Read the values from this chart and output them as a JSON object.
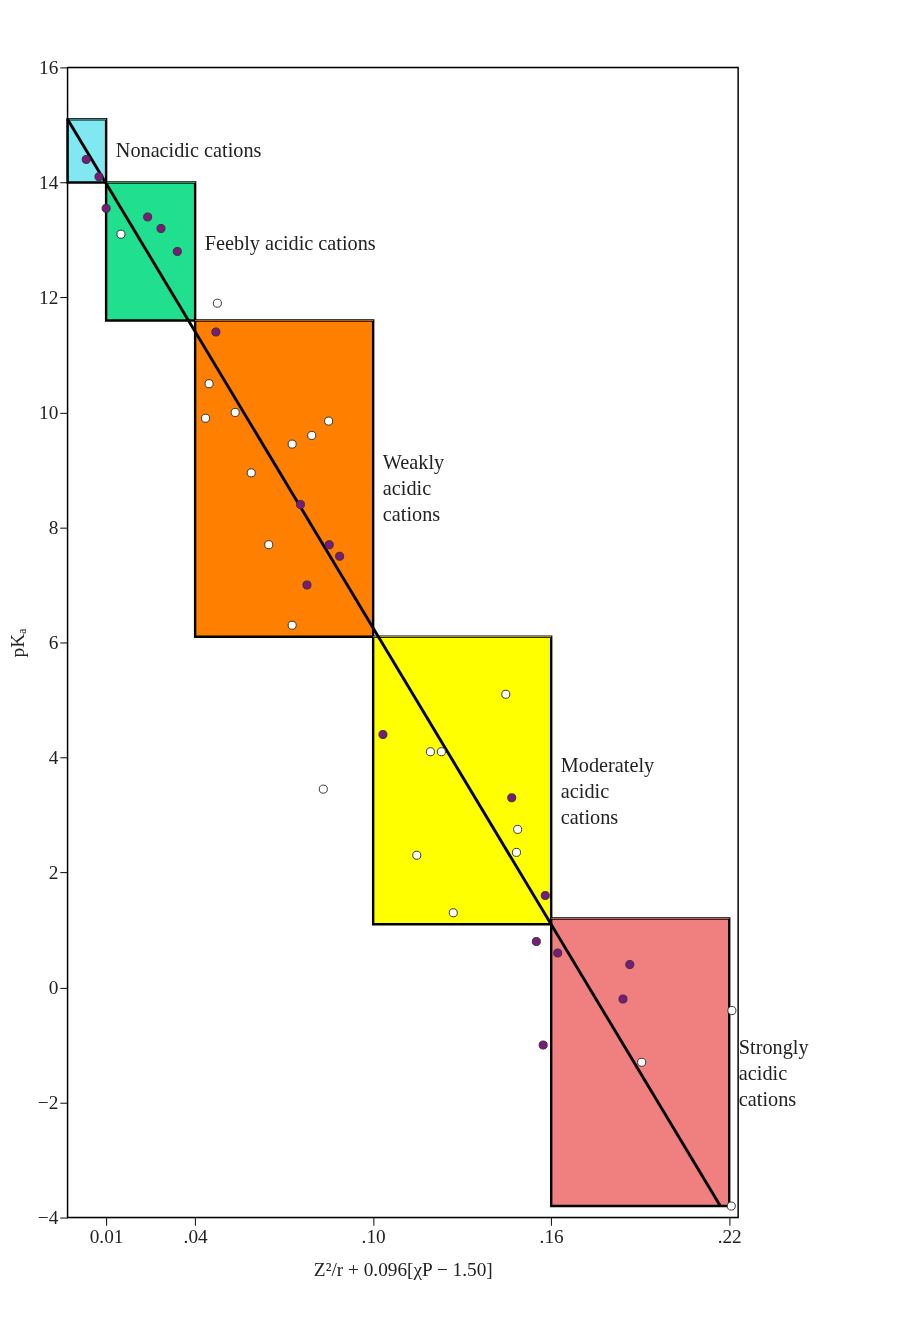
{
  "chart_data": {
    "type": "scatter",
    "xlabel": "Z²/r + 0.096[χP − 1.50]",
    "ylabel": "pKₐ",
    "xlim": [
      -0.003,
      0.223
    ],
    "ylim": [
      -4,
      16
    ],
    "xticks": [
      {
        "value": 0.01,
        "label": "0.01"
      },
      {
        "value": 0.04,
        "label": ".04"
      },
      {
        "value": 0.1,
        "label": ".10"
      },
      {
        "value": 0.16,
        "label": ".16"
      },
      {
        "value": 0.22,
        "label": ".22"
      }
    ],
    "yticks": [
      -4,
      -2,
      0,
      2,
      4,
      6,
      8,
      10,
      12,
      14,
      16
    ],
    "grid": false,
    "series": [
      {
        "type": "line",
        "color": "#80e8f0",
        "x": [
          -0.003,
          0.01
        ],
        "values": [
          15.1,
          15.1
        ],
        "lower": [
          14.0,
          14.0
        ],
        "upper": [
          15.1,
          15.1
        ]
      },
      {
        "type": "line",
        "color": "#20e090",
        "x": [
          0.01,
          0.04
        ],
        "values": [
          14.0,
          14.0
        ],
        "lower": [
          11.6,
          11.6
        ],
        "upper": [
          14.0,
          14.0
        ]
      },
      {
        "type": "line",
        "color": "#ff8000",
        "x": [
          0.04,
          0.1
        ],
        "values": [
          11.6,
          11.6
        ],
        "lower": [
          6.1,
          6.1
        ],
        "upper": [
          11.6,
          11.6
        ]
      },
      {
        "type": "line",
        "color": "#ffff00",
        "x": [
          0.1,
          0.16
        ],
        "values": [
          6.1,
          6.1
        ],
        "lower": [
          1.1,
          1.1
        ],
        "upper": [
          6.1,
          6.1
        ]
      },
      {
        "type": "line",
        "color": "#f08080",
        "x": [
          0.16,
          0.22
        ],
        "values": [
          1.2,
          1.2
        ],
        "lower": [
          -3.8,
          -3.8
        ],
        "upper": [
          1.2,
          1.2
        ]
      },
      {
        "type": "line",
        "color": "#000000",
        "x": [
          -0.003,
          0.217
        ],
        "values": [
          15.1,
          -3.8
        ]
      },
      {
        "color": "#7a1a7a",
        "marker": "circle",
        "x": [
          0.0033,
          0.0076,
          0.01,
          0.024,
          0.0285,
          0.034,
          0.047,
          0.0755,
          0.0852,
          0.0887,
          0.0777,
          0.1033,
          0.1467,
          0.158,
          0.155,
          0.1622,
          0.1865,
          0.1842,
          0.1573
        ],
        "values": [
          14.4,
          14.1,
          13.55,
          13.4,
          13.2,
          12.8,
          11.4,
          8.4,
          7.7,
          7.5,
          7.0,
          4.4,
          3.3,
          1.6,
          0.8,
          0.6,
          0.4,
          -0.2,
          -1.0
        ]
      },
      {
        "color": "#ffffff",
        "marker": "circle",
        "x": [
          0.015,
          0.0475,
          0.0447,
          0.0435,
          0.0535,
          0.0589,
          0.0727,
          0.0793,
          0.085,
          0.0648,
          0.0727,
          0.0832,
          0.1447,
          0.1193,
          0.123,
          0.1147,
          0.127,
          0.1487,
          0.1483,
          0.1905,
          0.2209,
          0.2207
        ],
        "values": [
          13.1,
          11.9,
          10.5,
          9.9,
          10.0,
          8.95,
          9.45,
          9.6,
          9.85,
          7.7,
          6.3,
          3.45,
          5.1,
          4.1,
          4.1,
          2.3,
          1.3,
          2.75,
          2.35,
          -1.3,
          -0.4,
          -3.8
        ]
      }
    ],
    "annotations": [
      "Nonacidic cations",
      "Feebly acidic cations",
      "Weakly\nacidic\ncations",
      "Moderately\nacidic\ncations",
      "Strongly\nacidic\ncations"
    ]
  }
}
